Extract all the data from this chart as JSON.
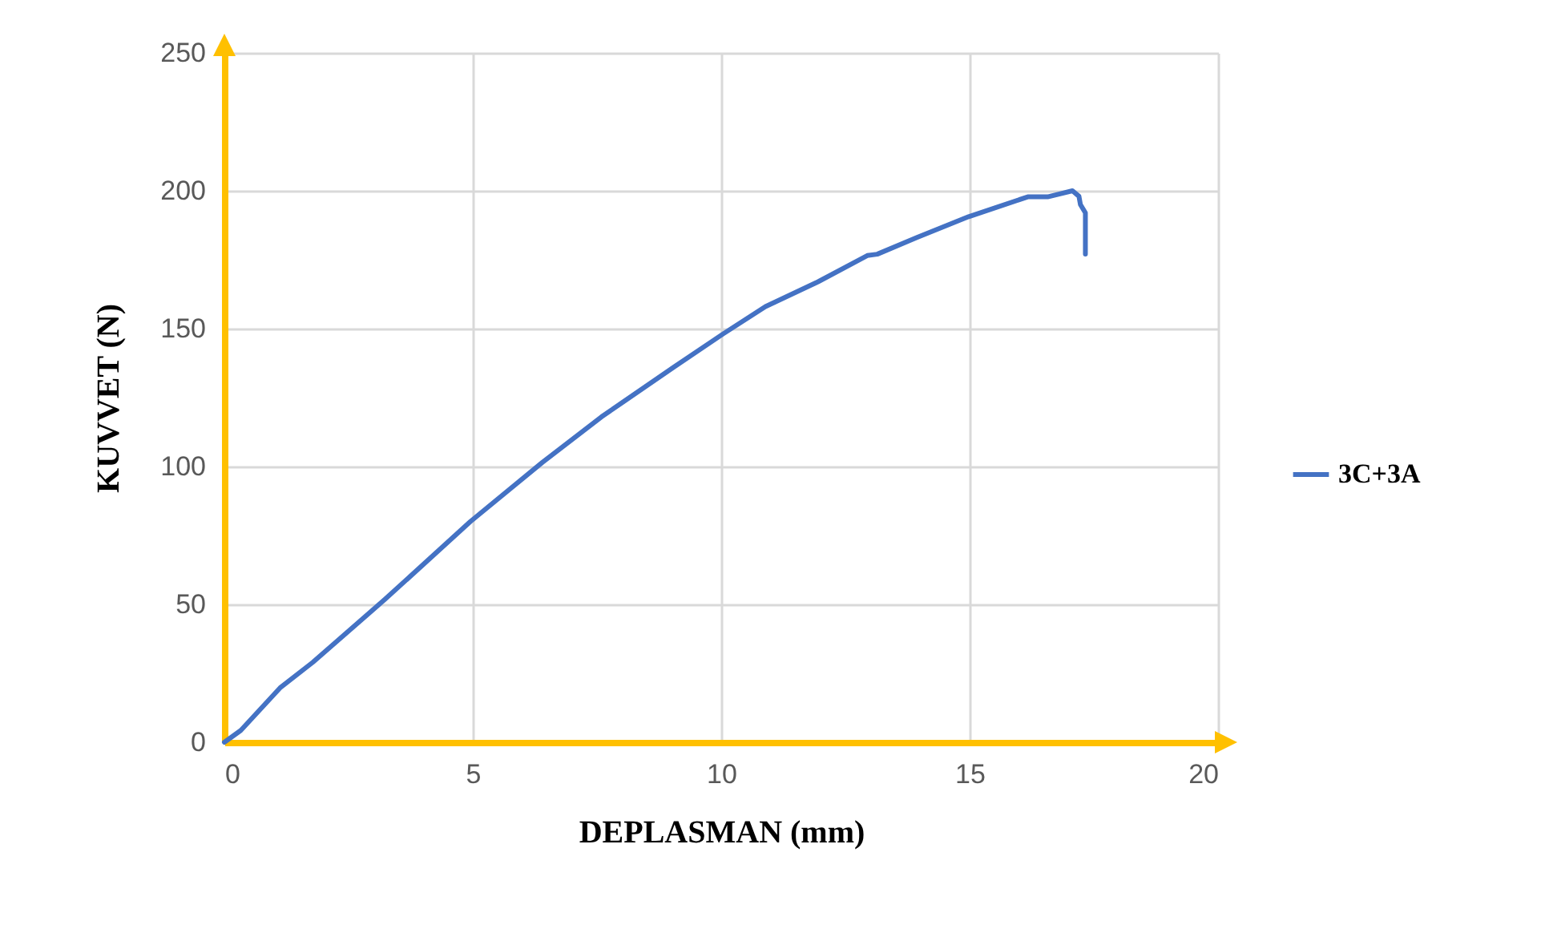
{
  "chart_data": {
    "type": "line",
    "xlabel": "DEPLASMAN (mm)",
    "ylabel": "KUVVET (N)",
    "xlim": [
      0,
      20
    ],
    "xticks": [
      0,
      5,
      10,
      15,
      20
    ],
    "ylim": [
      0,
      250
    ],
    "yticks": [
      0,
      50,
      100,
      150,
      200,
      250
    ],
    "grid": true,
    "legend": "right",
    "marker": "none",
    "line_style": "solid",
    "series": [
      {
        "name": "3C+3A",
        "color": "#4472c4",
        "x": [
          0,
          0.33,
          1.12,
          1.78,
          3.23,
          4.95,
          6.4,
          7.59,
          9.04,
          10.03,
          10.89,
          11.95,
          12.94,
          13.14,
          13.93,
          14.98,
          16.17,
          16.57,
          17.07,
          17.2,
          17.23,
          17.33,
          17.33
        ],
        "values": [
          0,
          4.3,
          19.7,
          29,
          51.8,
          80,
          101.5,
          118,
          136,
          148,
          158,
          167,
          176.5,
          177,
          183,
          190.6,
          197.8,
          197.8,
          200,
          198,
          195,
          192,
          177
        ]
      }
    ]
  }
}
